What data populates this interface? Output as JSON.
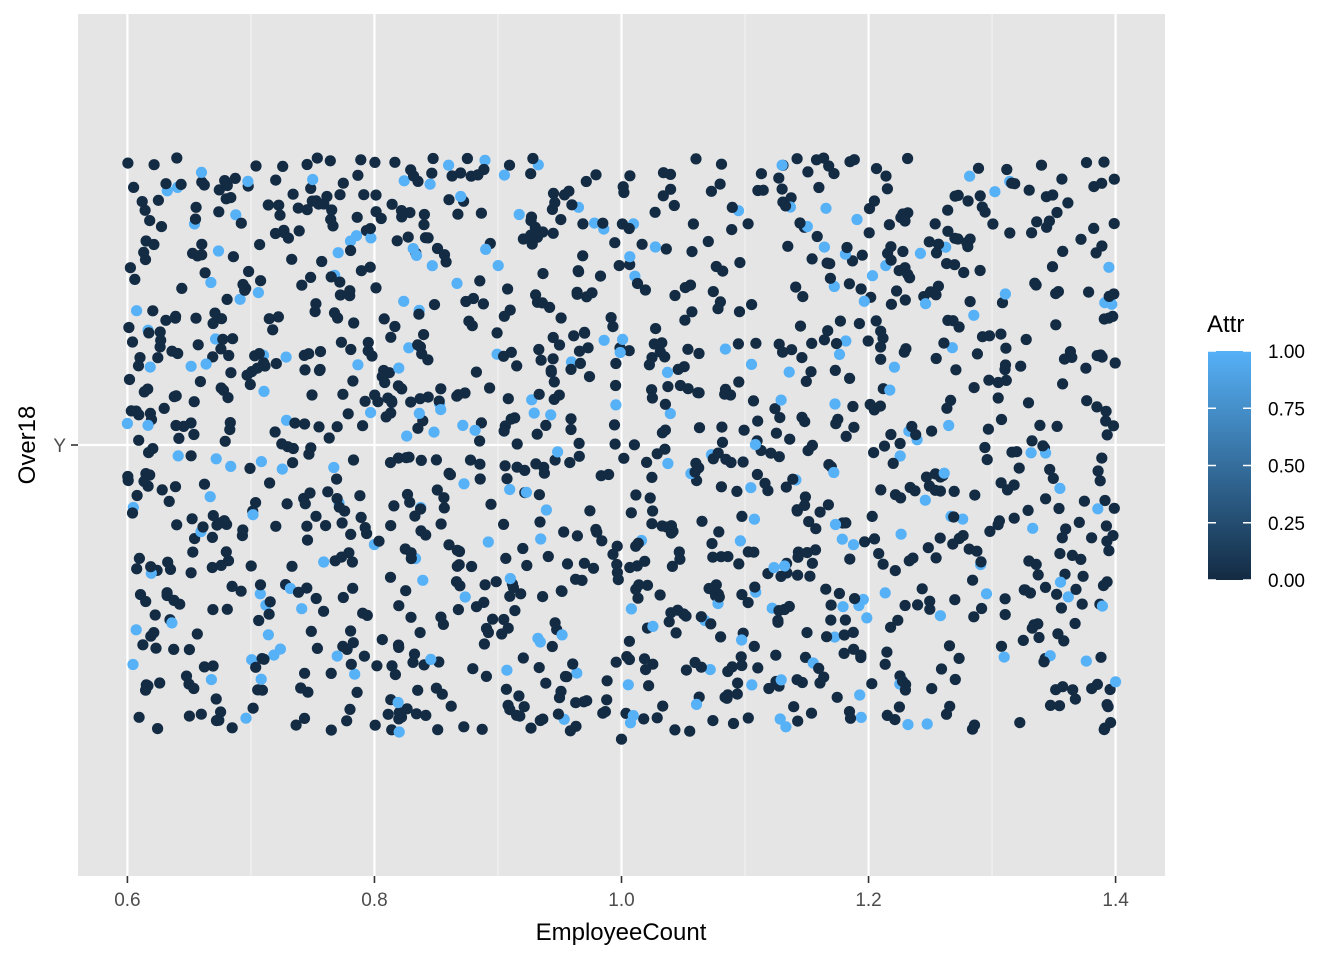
{
  "chart_data": {
    "type": "scatter",
    "title": "",
    "xlabel": "EmployeeCount",
    "ylabel": "Over18",
    "xlim": [
      0.56,
      1.44
    ],
    "x_ticks": [
      0.6,
      0.8,
      1.0,
      1.2,
      1.4
    ],
    "x_tick_labels": [
      "0.6",
      "0.8",
      "1.0",
      "1.2",
      "1.4"
    ],
    "y_categories": [
      "Y"
    ],
    "jitter": {
      "x_range": [
        0.6,
        1.4
      ],
      "y_range": [
        -0.4,
        0.4
      ]
    },
    "point_count": 1470,
    "background": "#e5e5e5",
    "grid": true,
    "color": {
      "variable": "Attr",
      "low": "#132b43",
      "high": "#56b1f7",
      "range": [
        0,
        1
      ],
      "breaks": [
        "0.00",
        "0.25",
        "0.50",
        "0.75",
        "1.00"
      ]
    },
    "legend": {
      "title": "Attr",
      "position": "right"
    },
    "series": [
      {
        "values_note": "jittered points at Over18 = Y",
        "attr_fraction_high": 0.16,
        "sample_points": [
          {
            "x": 0.64,
            "y": 0.4,
            "attr": 0
          },
          {
            "x": 0.66,
            "y": 0.38,
            "attr": 1
          },
          {
            "x": 0.75,
            "y": 0.37,
            "attr": 1
          },
          {
            "x": 0.86,
            "y": 0.39,
            "attr": 1
          },
          {
            "x": 1.13,
            "y": 0.39,
            "attr": 1
          },
          {
            "x": 1.34,
            "y": 0.39,
            "attr": 0
          },
          {
            "x": 0.6,
            "y": 0.03,
            "attr": 1
          },
          {
            "x": 0.82,
            "y": -0.4,
            "attr": 1
          },
          {
            "x": 1.0,
            "y": -0.41,
            "attr": 0
          },
          {
            "x": 1.4,
            "y": -0.33,
            "attr": 1
          }
        ]
      }
    ]
  }
}
